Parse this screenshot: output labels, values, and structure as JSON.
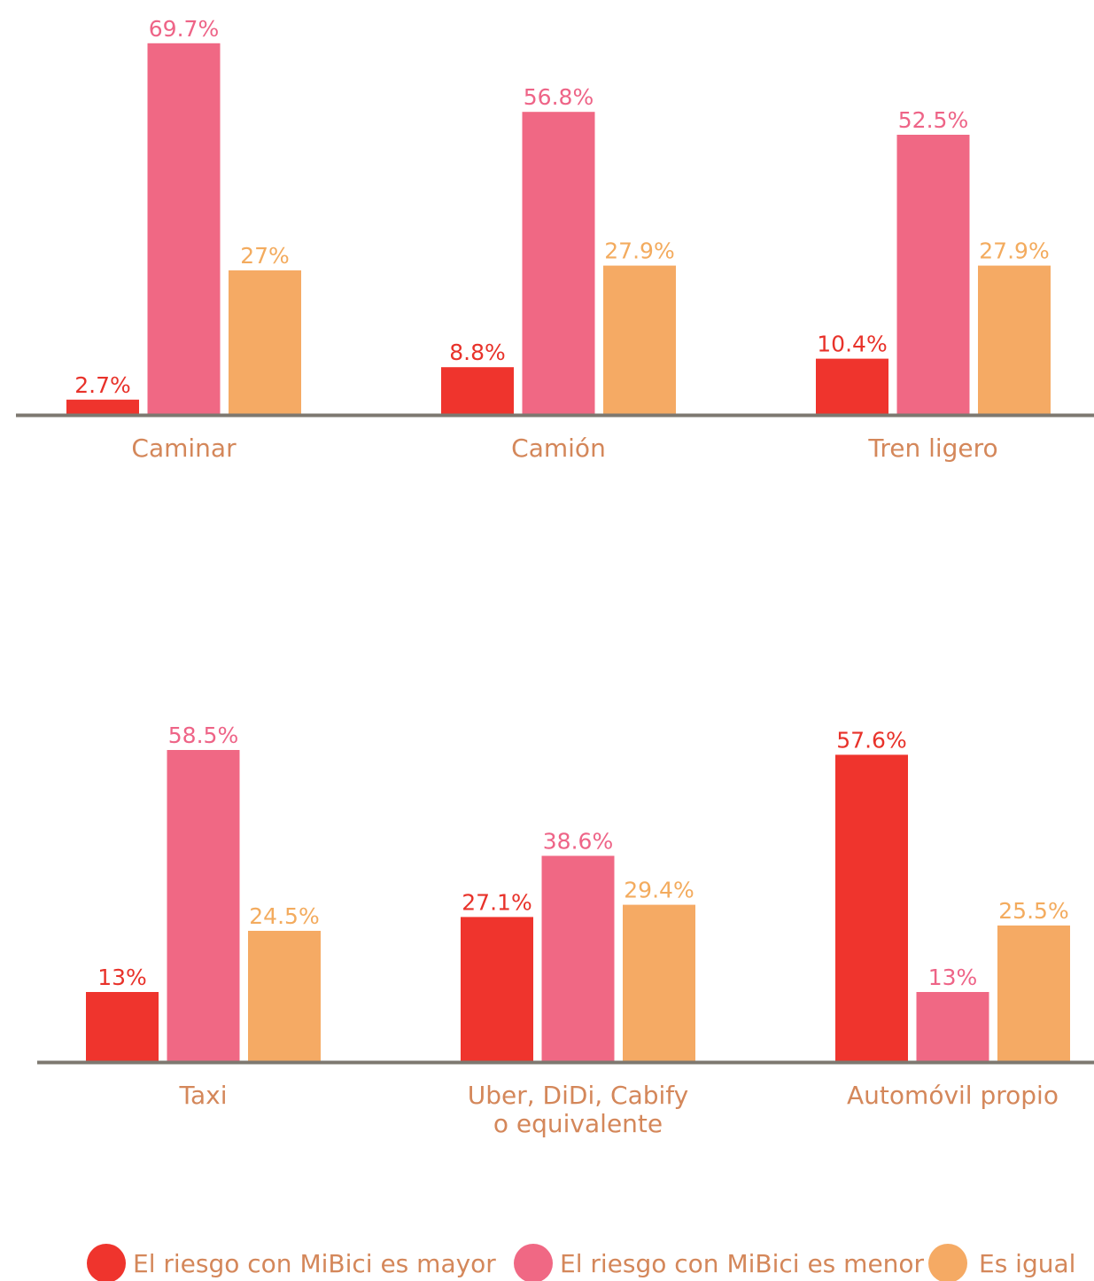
{
  "chart_data": {
    "type": "bar",
    "title": "",
    "xlabel": "",
    "ylabel": "",
    "ylim": [
      0,
      75
    ],
    "grid": false,
    "legend_position": "bottom",
    "series": [
      {
        "name": "El riesgo con MiBici es mayor",
        "color": "#ef342d"
      },
      {
        "name": "El riesgo con MiBici es menor",
        "color": "#f06884"
      },
      {
        "name": "Es igual",
        "color": "#f5aa64"
      }
    ],
    "panels": [
      {
        "categories": [
          {
            "label": [
              "Caminar"
            ],
            "values": [
              2.7,
              69.7,
              27
            ],
            "labels": [
              "2.7%",
              "69.7%",
              "27%"
            ]
          },
          {
            "label": [
              "Camión"
            ],
            "values": [
              8.8,
              56.8,
              27.9
            ],
            "labels": [
              "8.8%",
              "56.8%",
              "27.9%"
            ]
          },
          {
            "label": [
              "Tren ligero"
            ],
            "values": [
              10.4,
              52.5,
              27.9
            ],
            "labels": [
              "10.4%",
              "52.5%",
              "27.9%"
            ]
          }
        ]
      },
      {
        "categories": [
          {
            "label": [
              "Taxi"
            ],
            "values": [
              13,
              58.5,
              24.5
            ],
            "labels": [
              "13%",
              "58.5%",
              "24.5%"
            ]
          },
          {
            "label": [
              "Uber, DiDi, Cabify",
              "o equivalente"
            ],
            "values": [
              27.1,
              38.6,
              29.4
            ],
            "labels": [
              "27.1%",
              "38.6%",
              "29.4%"
            ]
          },
          {
            "label": [
              "Automóvil propio"
            ],
            "values": [
              57.6,
              13,
              25.5
            ],
            "labels": [
              "57.6%",
              "13%",
              "25.5%"
            ]
          }
        ]
      }
    ]
  }
}
